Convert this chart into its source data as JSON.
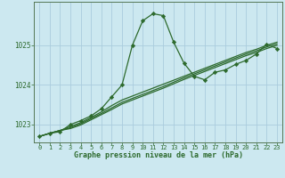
{
  "title": "Graphe pression niveau de la mer (hPa)",
  "bg_color": "#cce8f0",
  "grid_color": "#aaccdd",
  "line_color": "#2d6a2d",
  "marker_color": "#2d6a2d",
  "xlim": [
    -0.5,
    23.5
  ],
  "ylim": [
    1022.55,
    1026.1
  ],
  "yticks": [
    1023,
    1024,
    1025
  ],
  "xticks": [
    0,
    1,
    2,
    3,
    4,
    5,
    6,
    7,
    8,
    9,
    10,
    11,
    12,
    13,
    14,
    15,
    16,
    17,
    18,
    19,
    20,
    21,
    22,
    23
  ],
  "main_series": [
    1022.7,
    1022.78,
    1022.82,
    1023.0,
    1023.1,
    1023.22,
    1023.4,
    1023.7,
    1024.0,
    1025.0,
    1025.62,
    1025.8,
    1025.75,
    1025.08,
    1024.55,
    1024.22,
    1024.13,
    1024.32,
    1024.38,
    1024.52,
    1024.62,
    1024.78,
    1025.03,
    1024.92
  ],
  "linear_series": [
    [
      1022.7,
      1022.78,
      1022.85,
      1022.95,
      1023.05,
      1023.18,
      1023.32,
      1023.48,
      1023.62,
      1023.72,
      1023.82,
      1023.92,
      1024.02,
      1024.12,
      1024.22,
      1024.32,
      1024.42,
      1024.52,
      1024.62,
      1024.72,
      1024.82,
      1024.9,
      1025.0,
      1025.08
    ],
    [
      1022.7,
      1022.78,
      1022.85,
      1022.92,
      1023.02,
      1023.15,
      1023.28,
      1023.42,
      1023.56,
      1023.66,
      1023.76,
      1023.86,
      1023.96,
      1024.07,
      1024.18,
      1024.28,
      1024.38,
      1024.48,
      1024.58,
      1024.68,
      1024.78,
      1024.86,
      1024.96,
      1025.04
    ],
    [
      1022.7,
      1022.78,
      1022.85,
      1022.9,
      1022.99,
      1023.12,
      1023.25,
      1023.38,
      1023.52,
      1023.62,
      1023.72,
      1023.82,
      1023.92,
      1024.03,
      1024.14,
      1024.24,
      1024.34,
      1024.44,
      1024.54,
      1024.64,
      1024.74,
      1024.82,
      1024.92,
      1025.0
    ]
  ]
}
